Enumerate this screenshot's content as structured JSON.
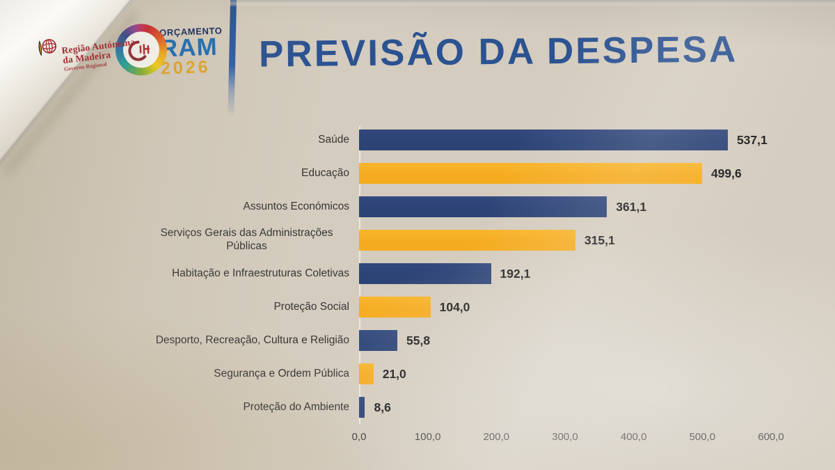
{
  "header": {
    "emblem": {
      "line1": "Região Autónoma",
      "line2": "da Madeira",
      "line3": "Governo Regional"
    },
    "logo": {
      "word": "ORÇAMENTO",
      "acronym": "RAM",
      "year": "2026"
    },
    "title": "PREVISÃO DA DESPESA"
  },
  "colors": {
    "bar_blue": "#2c4375",
    "bar_yellow": "#f5ab1f",
    "title": "#2b5291",
    "category_text": "#363636",
    "value_text": "#1c1c1c",
    "tick_text": "#3e3e3e"
  },
  "chart_data": {
    "type": "bar",
    "orientation": "horizontal",
    "title": "PREVISÃO DA DESPESA",
    "categories": [
      "Saúde",
      "Educação",
      "Assuntos Económicos",
      "Serviços Gerais das Administrações Públicas",
      "Habitação e Infraestruturas Coletivas",
      "Proteção Social",
      "Desporto, Recreação, Cultura e Religião",
      "Segurança e Ordem Pública",
      "Proteção do Ambiente"
    ],
    "values": [
      537.1,
      499.6,
      361.1,
      315.1,
      192.1,
      104.0,
      55.8,
      21.0,
      8.6
    ],
    "value_labels": [
      "537,1",
      "499,6",
      "361,1",
      "315,1",
      "192,1",
      "104,0",
      "55,8",
      "21,0",
      "8,6"
    ],
    "bar_colors": [
      "blue",
      "yellow",
      "blue",
      "yellow",
      "blue",
      "yellow",
      "blue",
      "yellow",
      "blue"
    ],
    "xlim": [
      0,
      600
    ],
    "x_ticks": [
      "0,0",
      "100,0",
      "200,0",
      "300,0",
      "400,0",
      "500,0",
      "600,0"
    ],
    "grid": false,
    "legend": false
  }
}
